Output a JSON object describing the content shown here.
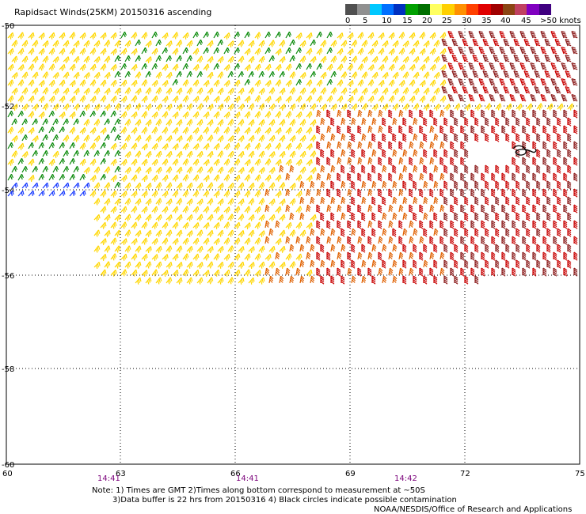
{
  "title": "Rapidsact Winds(25KM) 20150316 ascending",
  "legend": {
    "labels": [
      "0",
      "5",
      "10",
      "15",
      "20",
      "25",
      "30",
      "35",
      "40",
      "45",
      ">50 knots"
    ],
    "colors": [
      "#505050",
      "#909090",
      "#00c8ff",
      "#0070ff",
      "#0030c0",
      "#00a000",
      "#007000",
      "#ffff60",
      "#ffd000",
      "#ff9000",
      "#ff4000",
      "#e00000",
      "#a00000",
      "#8b4513",
      "#c04060",
      "#8000c0",
      "#400080"
    ]
  },
  "axes": {
    "lat_labels": [
      "-50",
      "-52",
      "-54",
      "-56",
      "-58",
      "-60"
    ],
    "lon_labels": [
      "60",
      "63",
      "66",
      "69",
      "72",
      "75"
    ]
  },
  "times": [
    "14:41",
    "14:41",
    "14:42"
  ],
  "notes": {
    "line1": "Note: 1) Times are GMT 2)Times along bottom correspond to measurement at ~50S",
    "line2": "3)Data buffer is 22 hrs from 20150316 4) Black circles indicate possible contamination",
    "line3": "NOAA/NESDIS/Office of Research and Applications"
  },
  "wind_palette": {
    "blue": "#1a3cff",
    "green": "#0a8a0a",
    "yellow": "#ffd700",
    "orange": "#e06000",
    "red": "#c80000",
    "darkred": "#8b1a1a"
  }
}
